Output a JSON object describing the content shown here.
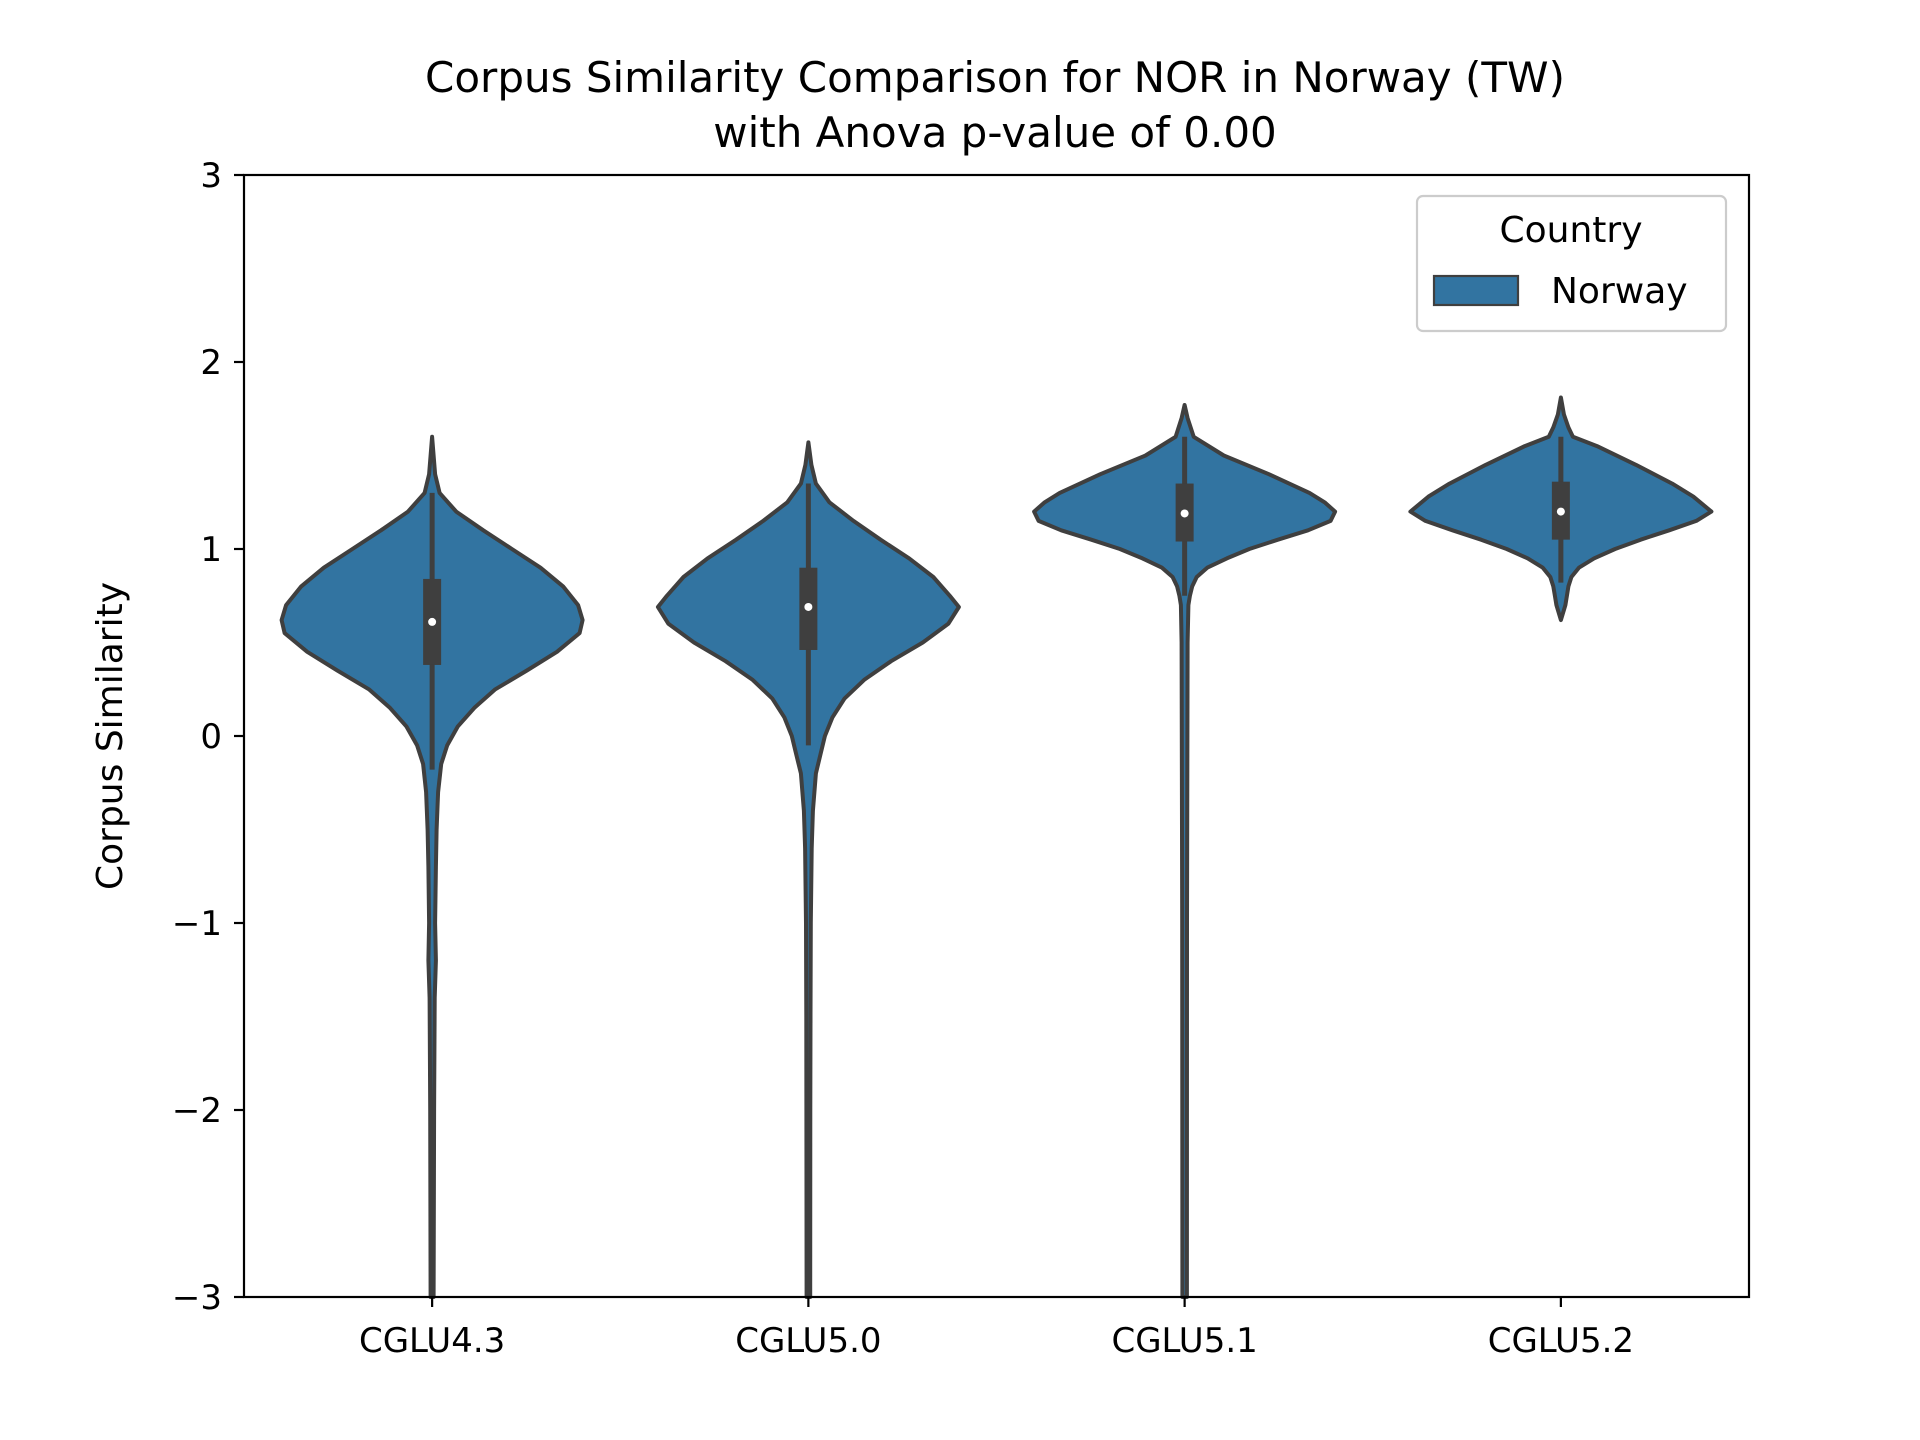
{
  "chart_data": {
    "type": "violin",
    "title_line1": "Corpus Similarity Comparison for NOR in Norway (TW)",
    "title_line2": "with Anova p-value of 0.00",
    "xlabel": "",
    "ylabel": "Corpus Similarity",
    "ylim": [
      -3,
      3
    ],
    "yticks": [
      -3,
      -2,
      -1,
      0,
      1,
      2,
      3
    ],
    "ytick_labels": [
      "−3",
      "−2",
      "−1",
      "0",
      "1",
      "2",
      "3"
    ],
    "grid": false,
    "legend": {
      "title": "Country",
      "placement": "top-right",
      "entries": [
        "Norway"
      ]
    },
    "colors": {
      "violin": "#3274a1",
      "outline": "#3f3f3f",
      "box": "#3f3f3f",
      "median": "#ffffff"
    },
    "categories": [
      "CGLU4.3",
      "CGLU5.0",
      "CGLU5.1",
      "CGLU5.2"
    ],
    "series": [
      {
        "name": "Norway",
        "groups": [
          {
            "category": "CGLU4.3",
            "min": -3.0,
            "q1": 0.38,
            "median": 0.61,
            "q3": 0.84,
            "max": 1.6,
            "whisker_low": -0.18,
            "whisker_high": 1.3,
            "density": [
              [
                1.6,
                0.0
              ],
              [
                1.4,
                0.02
              ],
              [
                1.3,
                0.05
              ],
              [
                1.2,
                0.16
              ],
              [
                1.1,
                0.34
              ],
              [
                1.0,
                0.53
              ],
              [
                0.9,
                0.72
              ],
              [
                0.8,
                0.87
              ],
              [
                0.7,
                0.97
              ],
              [
                0.62,
                1.0
              ],
              [
                0.55,
                0.98
              ],
              [
                0.45,
                0.83
              ],
              [
                0.35,
                0.63
              ],
              [
                0.25,
                0.42
              ],
              [
                0.15,
                0.28
              ],
              [
                0.05,
                0.17
              ],
              [
                -0.05,
                0.1
              ],
              [
                -0.15,
                0.06
              ],
              [
                -0.3,
                0.04
              ],
              [
                -0.5,
                0.03
              ],
              [
                -0.7,
                0.025
              ],
              [
                -1.0,
                0.02
              ],
              [
                -1.2,
                0.025
              ],
              [
                -1.4,
                0.017
              ],
              [
                -2.0,
                0.013
              ],
              [
                -3.0,
                0.01
              ]
            ]
          },
          {
            "category": "CGLU5.0",
            "min": -3.0,
            "q1": 0.46,
            "median": 0.69,
            "q3": 0.9,
            "max": 1.57,
            "whisker_low": -0.05,
            "whisker_high": 1.35,
            "density": [
              [
                1.57,
                0.0
              ],
              [
                1.45,
                0.02
              ],
              [
                1.35,
                0.05
              ],
              [
                1.25,
                0.14
              ],
              [
                1.15,
                0.3
              ],
              [
                1.05,
                0.48
              ],
              [
                0.95,
                0.67
              ],
              [
                0.85,
                0.83
              ],
              [
                0.75,
                0.94
              ],
              [
                0.69,
                1.0
              ],
              [
                0.6,
                0.93
              ],
              [
                0.5,
                0.76
              ],
              [
                0.4,
                0.55
              ],
              [
                0.3,
                0.37
              ],
              [
                0.2,
                0.24
              ],
              [
                0.1,
                0.16
              ],
              [
                0.0,
                0.11
              ],
              [
                -0.1,
                0.08
              ],
              [
                -0.2,
                0.05
              ],
              [
                -0.4,
                0.03
              ],
              [
                -0.6,
                0.022
              ],
              [
                -1.0,
                0.016
              ],
              [
                -1.5,
                0.014
              ],
              [
                -2.0,
                0.013
              ],
              [
                -3.0,
                0.012
              ]
            ]
          },
          {
            "category": "CGLU5.1",
            "min": -3.0,
            "q1": 1.04,
            "median": 1.19,
            "q3": 1.35,
            "max": 1.77,
            "whisker_low": 0.75,
            "whisker_high": 1.6,
            "density": [
              [
                1.77,
                0.0
              ],
              [
                1.7,
                0.02
              ],
              [
                1.6,
                0.06
              ],
              [
                1.5,
                0.26
              ],
              [
                1.4,
                0.56
              ],
              [
                1.3,
                0.83
              ],
              [
                1.25,
                0.93
              ],
              [
                1.2,
                1.0
              ],
              [
                1.15,
                0.97
              ],
              [
                1.1,
                0.82
              ],
              [
                1.05,
                0.62
              ],
              [
                1.0,
                0.43
              ],
              [
                0.95,
                0.28
              ],
              [
                0.9,
                0.15
              ],
              [
                0.85,
                0.08
              ],
              [
                0.8,
                0.05
              ],
              [
                0.75,
                0.035
              ],
              [
                0.7,
                0.025
              ],
              [
                0.5,
                0.02
              ],
              [
                -1.0,
                0.016
              ],
              [
                -3.0,
                0.015
              ]
            ]
          },
          {
            "category": "CGLU5.2",
            "min": 0.62,
            "q1": 1.05,
            "median": 1.2,
            "q3": 1.36,
            "max": 1.81,
            "whisker_low": 0.82,
            "whisker_high": 1.6,
            "density": [
              [
                1.81,
                0.0
              ],
              [
                1.72,
                0.02
              ],
              [
                1.65,
                0.05
              ],
              [
                1.6,
                0.08
              ],
              [
                1.55,
                0.24
              ],
              [
                1.45,
                0.5
              ],
              [
                1.35,
                0.74
              ],
              [
                1.28,
                0.88
              ],
              [
                1.2,
                1.0
              ],
              [
                1.15,
                0.9
              ],
              [
                1.1,
                0.72
              ],
              [
                1.05,
                0.53
              ],
              [
                1.0,
                0.36
              ],
              [
                0.95,
                0.22
              ],
              [
                0.9,
                0.12
              ],
              [
                0.85,
                0.07
              ],
              [
                0.8,
                0.05
              ],
              [
                0.75,
                0.04
              ],
              [
                0.7,
                0.03
              ],
              [
                0.62,
                0.0
              ]
            ]
          }
        ]
      }
    ]
  }
}
